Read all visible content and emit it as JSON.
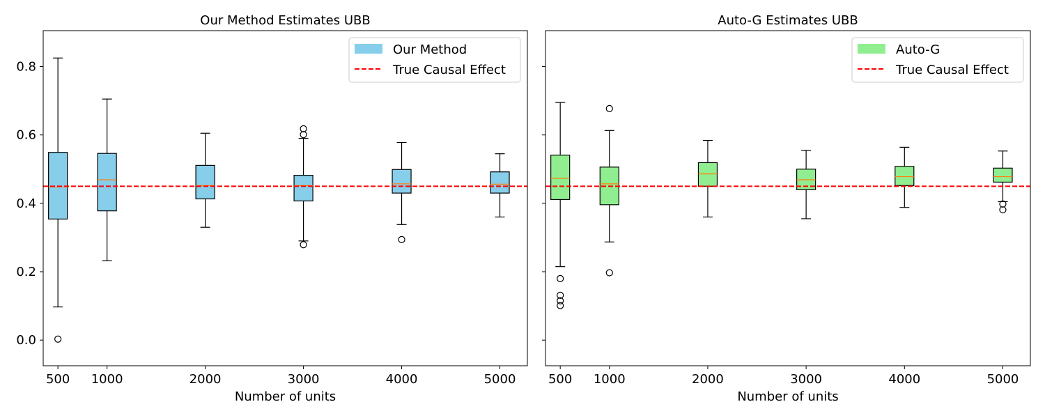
{
  "chart_data": [
    {
      "type": "box",
      "title": "Our Method Estimates UBB",
      "xlabel": "Number of units",
      "ylabel": "",
      "x_ticks": [
        500,
        1000,
        2000,
        3000,
        4000,
        5000
      ],
      "x_tick_labels": [
        "500",
        "1000",
        "2000",
        "3000",
        "4000",
        "5000"
      ],
      "xlim": [
        350,
        5280
      ],
      "ylim": [
        -0.075,
        0.905
      ],
      "y_ticks": [
        0.0,
        0.2,
        0.4,
        0.6,
        0.8
      ],
      "y_tick_labels": [
        "0.0",
        "0.2",
        "0.4",
        "0.6",
        "0.8"
      ],
      "reference_line": {
        "label": "True Causal Effect",
        "value": 0.45,
        "color": "#ff0000",
        "style": "dashed"
      },
      "legend": {
        "placement": "top-right",
        "entries": [
          "Our Method",
          "True Causal Effect"
        ]
      },
      "series": [
        {
          "name": "Our Method",
          "color": "#87ceeb",
          "median_color": "#ff7f0e",
          "boxes": [
            {
              "x": 500,
              "whisker_low": 0.097,
              "q1": 0.354,
              "median": 0.448,
              "q3": 0.549,
              "whisker_high": 0.825,
              "outliers": [
                0.003
              ]
            },
            {
              "x": 1000,
              "whisker_low": 0.232,
              "q1": 0.378,
              "median": 0.469,
              "q3": 0.546,
              "whisker_high": 0.705,
              "outliers": []
            },
            {
              "x": 2000,
              "whisker_low": 0.33,
              "q1": 0.413,
              "median": 0.452,
              "q3": 0.511,
              "whisker_high": 0.605,
              "outliers": []
            },
            {
              "x": 3000,
              "whisker_low": 0.29,
              "q1": 0.407,
              "median": 0.452,
              "q3": 0.482,
              "whisker_high": 0.59,
              "outliers": [
                0.279,
                0.601,
                0.618
              ]
            },
            {
              "x": 4000,
              "whisker_low": 0.338,
              "q1": 0.43,
              "median": 0.457,
              "q3": 0.499,
              "whisker_high": 0.578,
              "outliers": [
                0.294
              ]
            },
            {
              "x": 5000,
              "whisker_low": 0.36,
              "q1": 0.43,
              "median": 0.456,
              "q3": 0.492,
              "whisker_high": 0.545,
              "outliers": []
            }
          ]
        }
      ]
    },
    {
      "type": "box",
      "title": "Auto-G Estimates UBB",
      "xlabel": "Number of units",
      "ylabel": "",
      "x_ticks": [
        500,
        1000,
        2000,
        3000,
        4000,
        5000
      ],
      "x_tick_labels": [
        "500",
        "1000",
        "2000",
        "3000",
        "4000",
        "5000"
      ],
      "xlim": [
        350,
        5280
      ],
      "ylim": [
        -0.075,
        0.905
      ],
      "y_ticks": [
        0.0,
        0.2,
        0.4,
        0.6,
        0.8
      ],
      "y_tick_labels": [
        "",
        "",
        "",
        "",
        ""
      ],
      "reference_line": {
        "label": "True Causal Effect",
        "value": 0.45,
        "color": "#ff0000",
        "style": "dashed"
      },
      "legend": {
        "placement": "top-right",
        "entries": [
          "Auto-G",
          "True Causal Effect"
        ]
      },
      "series": [
        {
          "name": "Auto-G",
          "color": "#90ee90",
          "median_color": "#ff7f0e",
          "boxes": [
            {
              "x": 500,
              "whisker_low": 0.215,
              "q1": 0.411,
              "median": 0.473,
              "q3": 0.541,
              "whisker_high": 0.695,
              "outliers": [
                0.101,
                0.115,
                0.131,
                0.18
              ]
            },
            {
              "x": 1000,
              "whisker_low": 0.287,
              "q1": 0.396,
              "median": 0.457,
              "q3": 0.506,
              "whisker_high": 0.613,
              "outliers": [
                0.197,
                0.677
              ]
            },
            {
              "x": 2000,
              "whisker_low": 0.36,
              "q1": 0.45,
              "median": 0.486,
              "q3": 0.519,
              "whisker_high": 0.584,
              "outliers": []
            },
            {
              "x": 3000,
              "whisker_low": 0.355,
              "q1": 0.44,
              "median": 0.469,
              "q3": 0.5,
              "whisker_high": 0.555,
              "outliers": []
            },
            {
              "x": 4000,
              "whisker_low": 0.388,
              "q1": 0.452,
              "median": 0.478,
              "q3": 0.508,
              "whisker_high": 0.564,
              "outliers": []
            },
            {
              "x": 5000,
              "whisker_low": 0.405,
              "q1": 0.462,
              "median": 0.478,
              "q3": 0.503,
              "whisker_high": 0.553,
              "outliers": [
                0.381,
                0.398
              ]
            }
          ]
        }
      ]
    }
  ]
}
